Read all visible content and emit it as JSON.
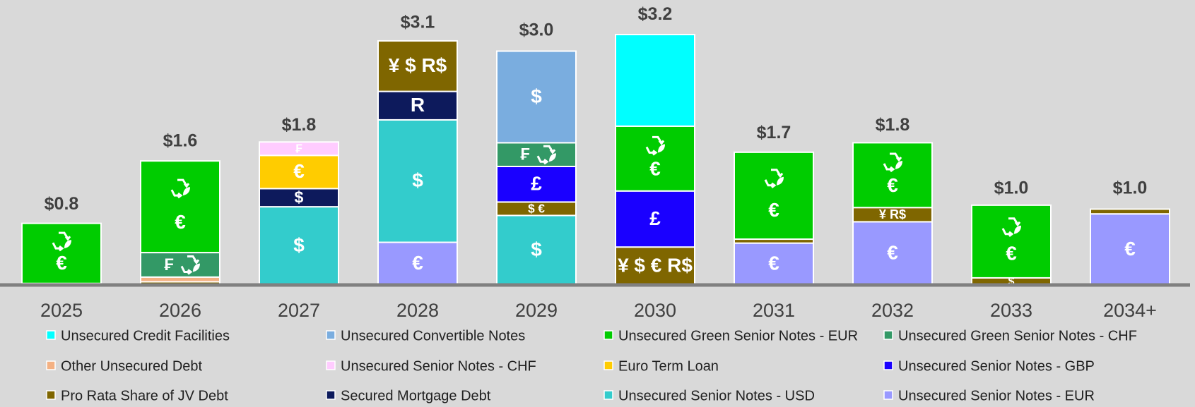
{
  "chart_data": {
    "type": "stacked_bar",
    "categories": [
      "2025",
      "2026",
      "2027",
      "2028",
      "2029",
      "2030",
      "2031",
      "2032",
      "2033",
      "2034+"
    ],
    "totals": {
      "values": [
        0.8,
        1.6,
        1.8,
        3.1,
        3.0,
        3.2,
        1.7,
        1.8,
        1.0,
        1.0
      ],
      "value_labels": [
        "$0.8",
        "$1.6",
        "$1.8",
        "$3.1",
        "$3.0",
        "$3.2",
        "$1.7",
        "$1.8",
        "$1.0",
        "$1.0"
      ]
    },
    "series": [
      {
        "name": "Unsecured Credit Facilities",
        "color": "#00ffff",
        "values": [
          0,
          0,
          0,
          0,
          0,
          1.16,
          0,
          0,
          0,
          0
        ],
        "labels": [
          null,
          null,
          null,
          null,
          null,
          null,
          null,
          null,
          null,
          null
        ]
      },
      {
        "name": "Unsecured Convertible Notes",
        "color": "#7aaddf",
        "values": [
          0,
          0,
          0,
          0,
          1.16,
          0,
          0,
          0,
          0,
          0
        ],
        "labels": [
          null,
          null,
          null,
          null,
          "$",
          null,
          null,
          null,
          null,
          null
        ]
      },
      {
        "name": "Unsecured Green Senior Notes - EUR",
        "color": "#00cc00",
        "values": [
          0.76,
          1.16,
          0,
          0,
          0,
          0.82,
          1.1,
          0.82,
          0.92,
          0
        ],
        "labels": [
          "€",
          "€",
          null,
          null,
          null,
          "€",
          "€",
          "€",
          "€",
          null
        ]
      },
      {
        "name": "Unsecured Green Senior Notes - CHF",
        "color": "#339966",
        "values": [
          0,
          0.31,
          0,
          0,
          0.3,
          0,
          0,
          0,
          0,
          0
        ],
        "labels": [
          null,
          "₣",
          null,
          null,
          "₣",
          null,
          null,
          null,
          null,
          null
        ]
      },
      {
        "name": "Other Unsecured Debt",
        "color": "#f4b183",
        "values": [
          0,
          0.06,
          0,
          0,
          0,
          0,
          0,
          0,
          0,
          0
        ],
        "labels": [
          null,
          null,
          null,
          null,
          null,
          null,
          null,
          null,
          null,
          null
        ]
      },
      {
        "name": "Unsecured Senior Notes - CHF",
        "color": "#ffccff",
        "values": [
          0,
          0,
          0.17,
          0,
          0,
          0,
          0,
          0,
          0,
          0
        ],
        "labels": [
          null,
          null,
          "₣",
          null,
          null,
          null,
          null,
          null,
          null,
          null
        ]
      },
      {
        "name": "Euro Term Loan",
        "color": "#ffcc00",
        "values": [
          0,
          0,
          0.42,
          0,
          0,
          0,
          0,
          0,
          0,
          0
        ],
        "labels": [
          null,
          null,
          "€",
          null,
          null,
          null,
          null,
          null,
          null,
          null
        ]
      },
      {
        "name": "Unsecured Senior Notes - GBP",
        "color": "#1a00ff",
        "values": [
          0,
          0,
          0,
          0,
          0.45,
          0.71,
          0,
          0,
          0,
          0
        ],
        "labels": [
          null,
          null,
          null,
          null,
          "£",
          "£",
          null,
          null,
          null,
          null
        ]
      },
      {
        "name": "Pro Rata Share of JV Debt",
        "color": "#7f6600",
        "values": [
          0.02,
          0.04,
          0,
          0.64,
          0.17,
          0.48,
          0.05,
          0.18,
          0.09,
          0.06
        ],
        "labels": [
          null,
          null,
          null,
          "¥ $ R$",
          "$ €",
          "¥ $ € R$",
          null,
          "¥ R$",
          "$",
          null
        ]
      },
      {
        "name": "Secured Mortgage Debt",
        "color": "#0d1a5c",
        "values": [
          0,
          0,
          0.23,
          0.36,
          0,
          0,
          0,
          0,
          0,
          0
        ],
        "labels": [
          null,
          null,
          "$",
          "R",
          null,
          null,
          null,
          null,
          null,
          null
        ]
      },
      {
        "name": "Unsecured Senior Notes - USD",
        "color": "#33cccc",
        "values": [
          0,
          0,
          0.99,
          1.55,
          0.88,
          0,
          0,
          0,
          0,
          0
        ],
        "labels": [
          null,
          null,
          "$",
          "$",
          "$",
          null,
          null,
          null,
          null,
          null
        ]
      },
      {
        "name": "Unsecured Senior Notes - EUR",
        "color": "#9999ff",
        "values": [
          0,
          0,
          0,
          0.54,
          0,
          0,
          0.53,
          0.8,
          0,
          0.9
        ],
        "labels": [
          null,
          null,
          null,
          "€",
          null,
          null,
          "€",
          "€",
          null,
          "€"
        ]
      }
    ]
  }
}
